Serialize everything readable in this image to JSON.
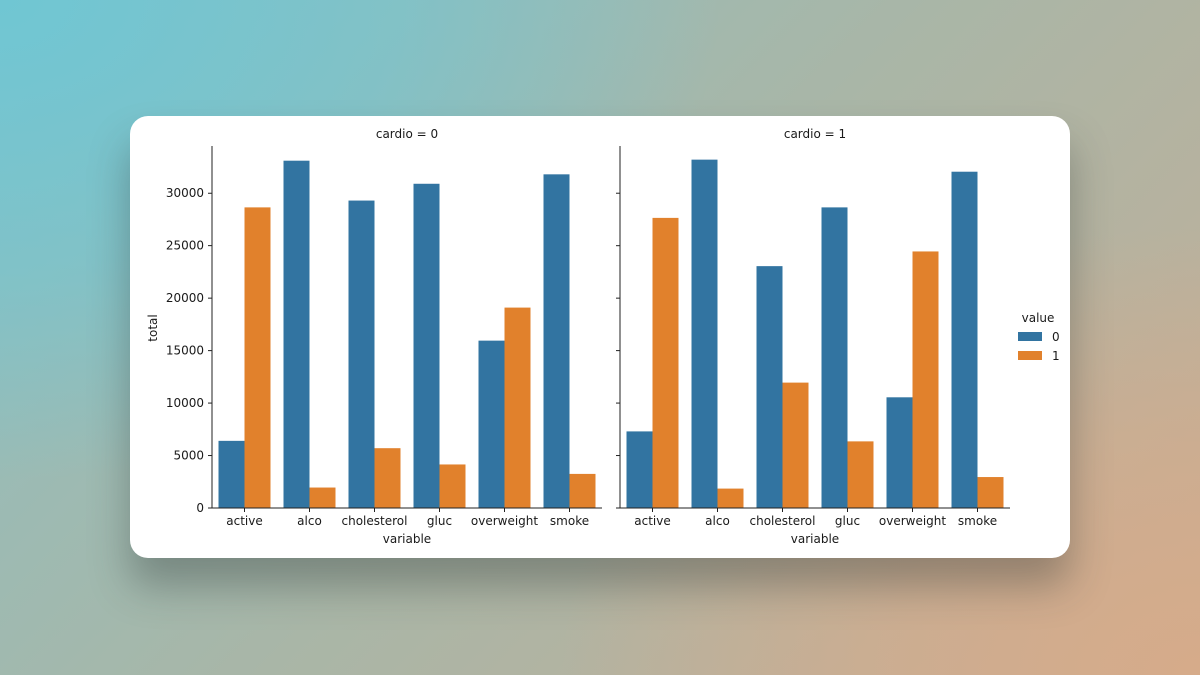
{
  "colors": {
    "series_0": "#3274a1",
    "series_1": "#e1812c"
  },
  "chart_data": {
    "type": "bar",
    "xlabel": "variable",
    "ylabel": "total",
    "ylim": [
      0,
      34500
    ],
    "yticks": [
      0,
      5000,
      10000,
      15000,
      20000,
      25000,
      30000
    ],
    "categories": [
      "active",
      "alco",
      "cholesterol",
      "gluc",
      "overweight",
      "smoke"
    ],
    "legend": {
      "title": "value",
      "placement": "right",
      "entries": [
        "0",
        "1"
      ]
    },
    "facets": [
      {
        "title": "cardio = 0",
        "series": [
          {
            "name": "0",
            "values": [
              6400,
              33100,
              29300,
              30900,
              15950,
              31800
            ]
          },
          {
            "name": "1",
            "values": [
              28650,
              1950,
              5700,
              4150,
              19100,
              3250
            ]
          }
        ]
      },
      {
        "title": "cardio = 1",
        "series": [
          {
            "name": "0",
            "values": [
              7300,
              33200,
              23050,
              28650,
              10550,
              32050
            ]
          },
          {
            "name": "1",
            "values": [
              27650,
              1850,
              11950,
              6350,
              24450,
              2950
            ]
          }
        ]
      }
    ]
  }
}
